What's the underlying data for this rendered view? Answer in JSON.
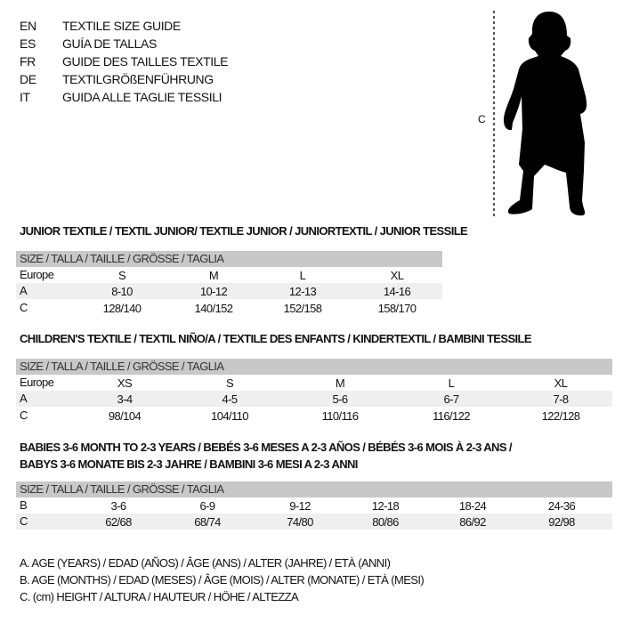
{
  "languages": [
    {
      "code": "EN",
      "title": "TEXTILE SIZE GUIDE"
    },
    {
      "code": "ES",
      "title": "GUÍA DE TALLAS"
    },
    {
      "code": "FR",
      "title": "GUIDE DES TAILLES TEXTILE"
    },
    {
      "code": "DE",
      "title": "TEXTILGRÖßENFÜHRUNG"
    },
    {
      "code": "IT",
      "title": "GUIDA ALLE TAGLIE TESSILI"
    }
  ],
  "figure": {
    "measure_label": "C",
    "icon": "child-silhouette"
  },
  "junior": {
    "title": "JUNIOR TEXTILE / TEXTIL JUNIOR/ TEXTILE JUNIOR / JUNIORTEXTIL / JUNIOR TESSILE",
    "header": "SIZE / TALLA / TAILLE / GRÖSSE / TAGLIA",
    "rows": [
      {
        "label": "Europe",
        "cells": [
          "S",
          "M",
          "L",
          "XL"
        ]
      },
      {
        "label": "A",
        "cells": [
          "8-10",
          "10-12",
          "12-13",
          "14-16"
        ]
      },
      {
        "label": "C",
        "cells": [
          "128/140",
          "140/152",
          "152/158",
          "158/170"
        ]
      }
    ]
  },
  "children": {
    "title": "CHILDREN'S TEXTILE / TEXTIL NIÑO/A / TEXTILE DES ENFANTS / KINDERTEXTIL / BAMBINI TESSILE",
    "header": "SIZE / TALLA / TAILLE / GRÖSSE / TAGLIA",
    "rows": [
      {
        "label": "Europe",
        "cells": [
          "XS",
          "S",
          "M",
          "L",
          "XL"
        ]
      },
      {
        "label": "A",
        "cells": [
          "3-4",
          "4-5",
          "5-6",
          "6-7",
          "7-8"
        ]
      },
      {
        "label": "C",
        "cells": [
          "98/104",
          "104/110",
          "110/116",
          "116/122",
          "122/128"
        ]
      }
    ]
  },
  "babies": {
    "title_line1": "BABIES 3-6 MONTH TO 2-3 YEARS / BEBÉS 3-6 MESES A 2-3 AÑOS / BÉBÉS 3-6 MOIS À 2-3 ANS /",
    "title_line2": "BABYS 3-6 MONATE BIS 2-3 JAHRE / BAMBINI 3-6 MESI A 2-3 ANNI",
    "header": "SIZE / TALLA / TAILLE / GRÖSSE / TAGLIA",
    "rows": [
      {
        "label": "B",
        "cells": [
          "3-6",
          "6-9",
          "9-12",
          "12-18",
          "18-24",
          "24-36"
        ]
      },
      {
        "label": "C",
        "cells": [
          "62/68",
          "68/74",
          "74/80",
          "80/86",
          "86/92",
          "92/98"
        ]
      }
    ]
  },
  "legend": [
    "A. AGE (YEARS) / EDAD (AÑOS) / ÂGE (ANS) / ALTER (JAHRE) / ETÀ (ANNI)",
    "B. AGE (MONTHS) / EDAD (MESES) / ÂGE (MOIS) / ALTER (MONATE) / ETÀ (MESI)",
    "C. (cm) HEIGHT / ALTURA / HAUTEUR / HÖHE / ALTEZZA"
  ]
}
